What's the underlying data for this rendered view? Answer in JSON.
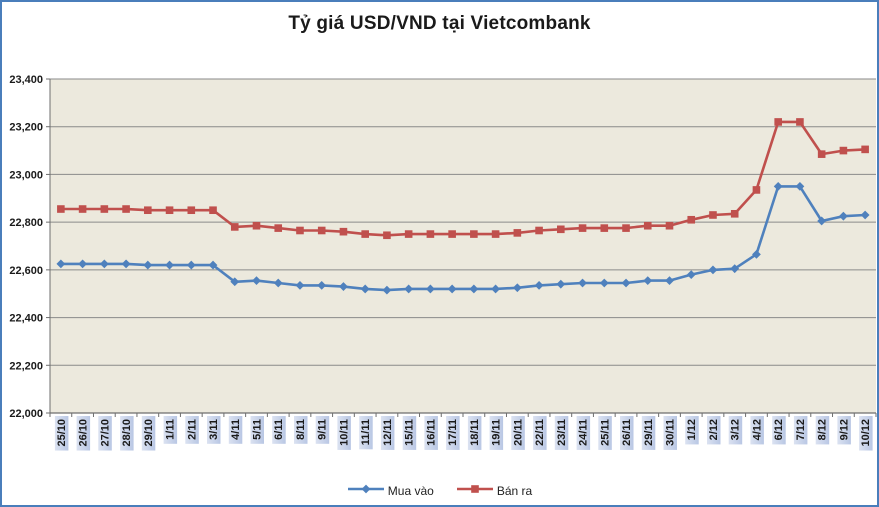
{
  "window": {
    "border_color": "#4a7ebb",
    "background": "#ffffff"
  },
  "chart_data": {
    "type": "line",
    "title": "Tỷ giá USD/VND tại Vietcombank",
    "xlabel": "",
    "ylabel": "",
    "legend_position": "bottom",
    "grid": "horizontal",
    "categories": [
      "25/10",
      "26/10",
      "27/10",
      "28/10",
      "29/10",
      "1/11",
      "2/11",
      "3/11",
      "4/11",
      "5/11",
      "6/11",
      "8/11",
      "9/11",
      "10/11",
      "11/11",
      "12/11",
      "15/11",
      "16/11",
      "17/11",
      "18/11",
      "19/11",
      "20/11",
      "22/11",
      "23/11",
      "24/11",
      "25/11",
      "26/11",
      "29/11",
      "30/11",
      "1/12",
      "2/12",
      "3/12",
      "4/12",
      "6/12",
      "7/12",
      "8/12",
      "9/12",
      "10/12"
    ],
    "series": [
      {
        "name": "Mua vào",
        "color": "#4f81bd",
        "marker": "diamond",
        "values": [
          22625,
          22625,
          22625,
          22625,
          22620,
          22620,
          22620,
          22620,
          22550,
          22555,
          22545,
          22535,
          22535,
          22530,
          22520,
          22515,
          22520,
          22520,
          22520,
          22520,
          22520,
          22525,
          22535,
          22540,
          22545,
          22545,
          22545,
          22555,
          22555,
          22580,
          22600,
          22605,
          22665,
          22950,
          22950,
          22805,
          22825,
          22830
        ]
      },
      {
        "name": "Bán ra",
        "color": "#c0504d",
        "marker": "square",
        "values": [
          22855,
          22855,
          22855,
          22855,
          22850,
          22850,
          22850,
          22850,
          22780,
          22785,
          22775,
          22765,
          22765,
          22760,
          22750,
          22745,
          22750,
          22750,
          22750,
          22750,
          22750,
          22755,
          22765,
          22770,
          22775,
          22775,
          22775,
          22785,
          22785,
          22810,
          22830,
          22835,
          22935,
          23220,
          23220,
          23085,
          23100,
          23105
        ]
      }
    ],
    "y_axis": {
      "min": 22000,
      "max": 23400,
      "step": 200,
      "tick_labels": [
        "22,000",
        "22,200",
        "22,400",
        "22,600",
        "22,800",
        "23,000",
        "23,200",
        "23,400"
      ]
    },
    "plot_style": {
      "background": "#ece9dd",
      "gridline_color": "#8a8a8a",
      "axis_color": "#6e6e6e",
      "x_label_bg_from": "#dbe2f1",
      "x_label_bg_to": "#b9c7e4",
      "label_text_color": "#1a1a1a"
    }
  }
}
